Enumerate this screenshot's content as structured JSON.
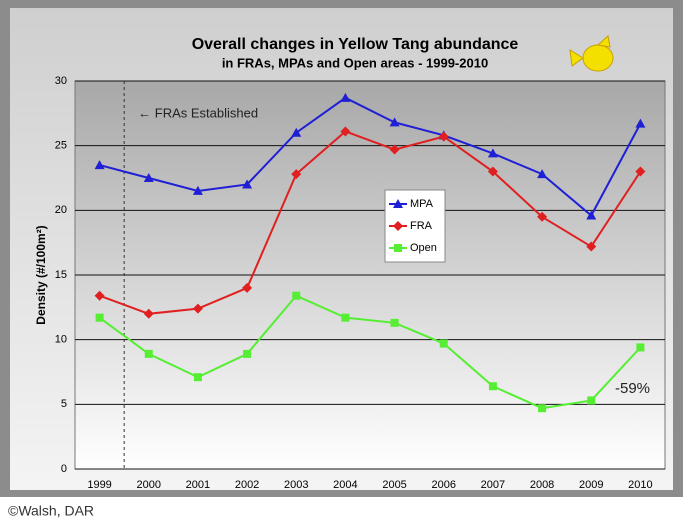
{
  "chart_data": {
    "type": "line",
    "title": "Overall changes in Yellow Tang abundance",
    "subtitle": "in FRAs, MPAs and Open areas - 1999-2010",
    "y_label": "Density (#/100m²)",
    "categories": [
      "1999",
      "2000",
      "2001",
      "2002",
      "2003",
      "2004",
      "2005",
      "2006",
      "2007",
      "2008",
      "2009",
      "2010"
    ],
    "series": [
      {
        "name": "MPA",
        "color": "#1f1fd6",
        "marker": "triangle",
        "values": [
          23.5,
          22.5,
          21.5,
          22.0,
          26.0,
          28.7,
          26.8,
          25.8,
          24.4,
          22.8,
          19.6,
          26.7
        ]
      },
      {
        "name": "FRA",
        "color": "#e02020",
        "marker": "diamond",
        "values": [
          13.4,
          12.0,
          12.4,
          14.0,
          22.8,
          26.1,
          24.7,
          25.7,
          23.0,
          19.5,
          17.2,
          23.0
        ]
      },
      {
        "name": "Open",
        "color": "#55ee33",
        "marker": "square",
        "values": [
          11.7,
          8.9,
          7.1,
          8.9,
          13.4,
          11.7,
          11.3,
          9.7,
          6.4,
          4.7,
          5.3,
          9.4
        ]
      }
    ],
    "ylim": [
      0,
      30
    ],
    "yticks": [
      0,
      5,
      10,
      15,
      20,
      25,
      30
    ],
    "grid": true,
    "annotations": [
      "← FRAs Established",
      "-59%"
    ],
    "credit": "©Walsh, DAR"
  }
}
